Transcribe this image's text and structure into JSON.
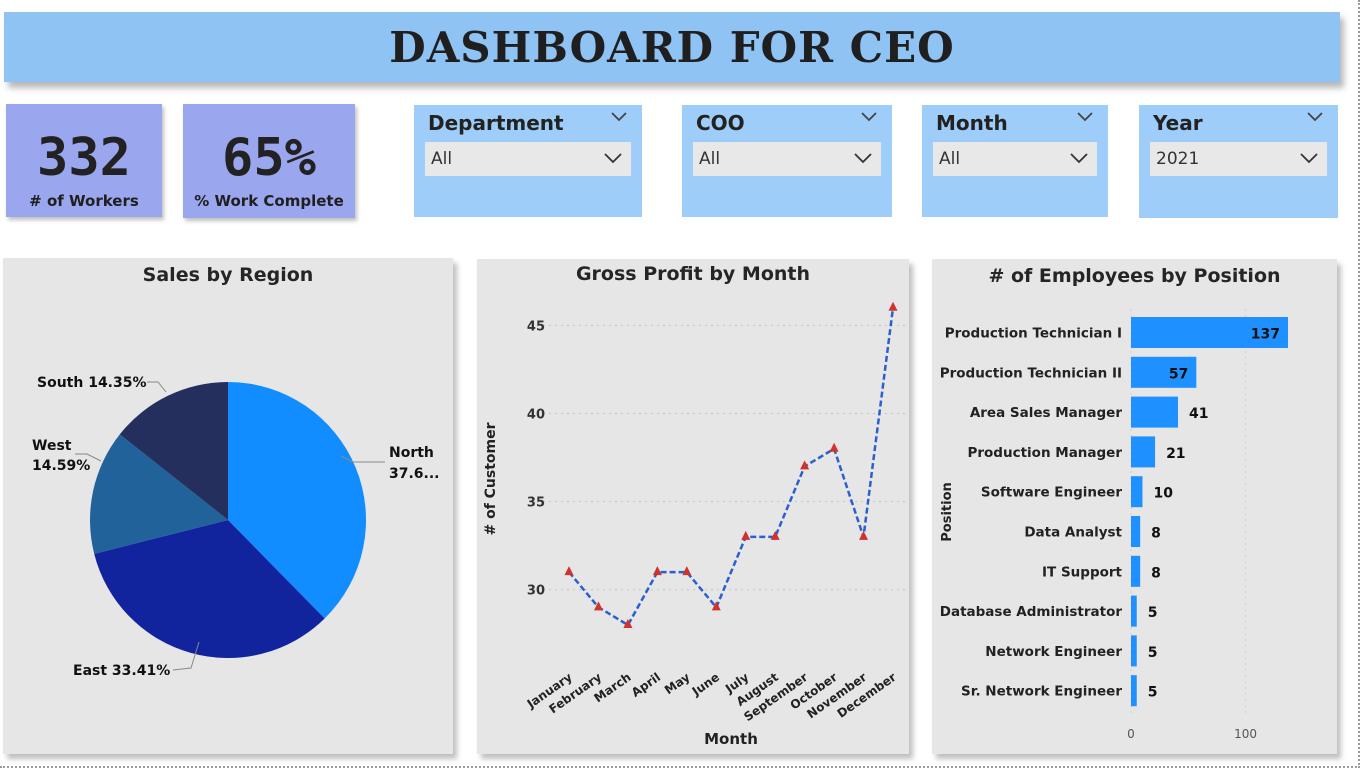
{
  "title": "DASHBOARD FOR CEO",
  "kpis": {
    "workers": {
      "value": "332",
      "label": "# of Workers"
    },
    "work_complete": {
      "value": "65%",
      "label": "% Work Complete"
    }
  },
  "slicers": {
    "department": {
      "title": "Department",
      "value": "All"
    },
    "coo": {
      "title": "COO",
      "value": "All"
    },
    "month": {
      "title": "Month",
      "value": "All"
    },
    "year": {
      "title": "Year",
      "value": "2021"
    }
  },
  "colors": {
    "banner": "#8fc3f4",
    "kpi": "#9aa6ee",
    "slicer": "#9fcdfa",
    "card": "#e6e6e6",
    "bar": "#1e90ff",
    "line": "#2b5fd0",
    "marker": "#d0322c"
  },
  "chart_data": [
    {
      "type": "pie",
      "title": "Sales by Region",
      "slices": [
        {
          "label": "North",
          "value": 37.65,
          "display": "North 37.6...",
          "color": "#118dff"
        },
        {
          "label": "East",
          "value": 33.41,
          "display": "East 33.41%",
          "color": "#12239e"
        },
        {
          "label": "West",
          "value": 14.59,
          "display": "West 14.59%",
          "color": "#206299"
        },
        {
          "label": "South",
          "value": 14.35,
          "display": "South 14.35%",
          "color": "#252f5e"
        }
      ]
    },
    {
      "type": "line",
      "title": "Gross Profit by Month",
      "xlabel": "Month",
      "ylabel": "# of Customer",
      "categories": [
        "January",
        "February",
        "March",
        "April",
        "May",
        "June",
        "July",
        "August",
        "September",
        "October",
        "November",
        "December"
      ],
      "values": [
        31,
        29,
        28,
        31,
        31,
        29,
        33,
        33,
        37,
        38,
        33,
        46
      ],
      "yticks": [
        30,
        35,
        40,
        45
      ],
      "ylim": [
        25.5,
        46.5
      ],
      "grid": true
    },
    {
      "type": "bar",
      "orientation": "horizontal",
      "title": "# of Employees by Position",
      "ylabel": "Position",
      "categories": [
        "Production Technician I",
        "Production Technician II",
        "Area Sales Manager",
        "Production Manager",
        "Software Engineer",
        "Data Analyst",
        "IT Support",
        "Database Administrator",
        "Network Engineer",
        "Sr. Network Engineer"
      ],
      "values": [
        137,
        57,
        41,
        21,
        10,
        8,
        8,
        5,
        5,
        5
      ],
      "xticks": [
        0,
        100
      ],
      "xlim": [
        0,
        137
      ]
    }
  ]
}
